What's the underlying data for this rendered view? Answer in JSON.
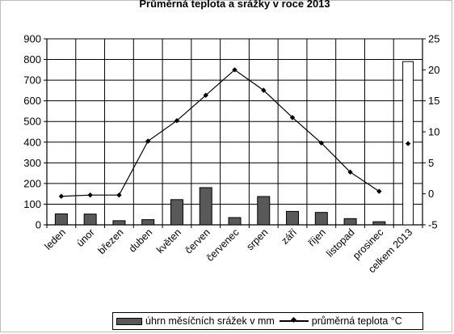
{
  "chart_data": {
    "type": "bar+line",
    "title": "Průměrná teplota a srážky v roce 2013",
    "categories": [
      "leden",
      "únor",
      "březen",
      "duben",
      "květen",
      "červen",
      "červenec",
      "srpen",
      "září",
      "říjen",
      "listopad",
      "prosinec",
      "celkem 2013"
    ],
    "category_label_style": [
      "normal",
      "faded",
      "faded",
      "normal",
      "faded",
      "faded",
      "faded",
      "normal",
      "faded",
      "faded",
      "normal",
      "normal",
      "normal"
    ],
    "series": [
      {
        "name": "úhrn měsíčních srážek v mm",
        "type": "bar",
        "axis": "left",
        "color": "#595959",
        "values": [
          53,
          52,
          20,
          25,
          122,
          180,
          35,
          137,
          65,
          60,
          30,
          15,
          790
        ]
      },
      {
        "name": "průměrná teplota °C",
        "type": "line",
        "axis": "right",
        "color": "#000000",
        "values": [
          -0.4,
          -0.2,
          -0.2,
          8.5,
          11.8,
          15.9,
          20.0,
          16.7,
          12.3,
          8.2,
          3.5,
          0.4,
          8.1
        ]
      }
    ],
    "y_left": {
      "lim": [
        0,
        900
      ],
      "ticks": [
        0,
        100,
        200,
        300,
        400,
        500,
        600,
        700,
        800,
        900
      ]
    },
    "y_right": {
      "lim": [
        -5,
        25
      ],
      "ticks": [
        -5,
        0,
        5,
        10,
        15,
        20,
        25
      ]
    },
    "grid": true,
    "legend_position": "bottom"
  },
  "colors": {
    "bar_fill": "#595959",
    "bar_outline": "#000000",
    "line": "#000000",
    "grid": "#000000"
  }
}
